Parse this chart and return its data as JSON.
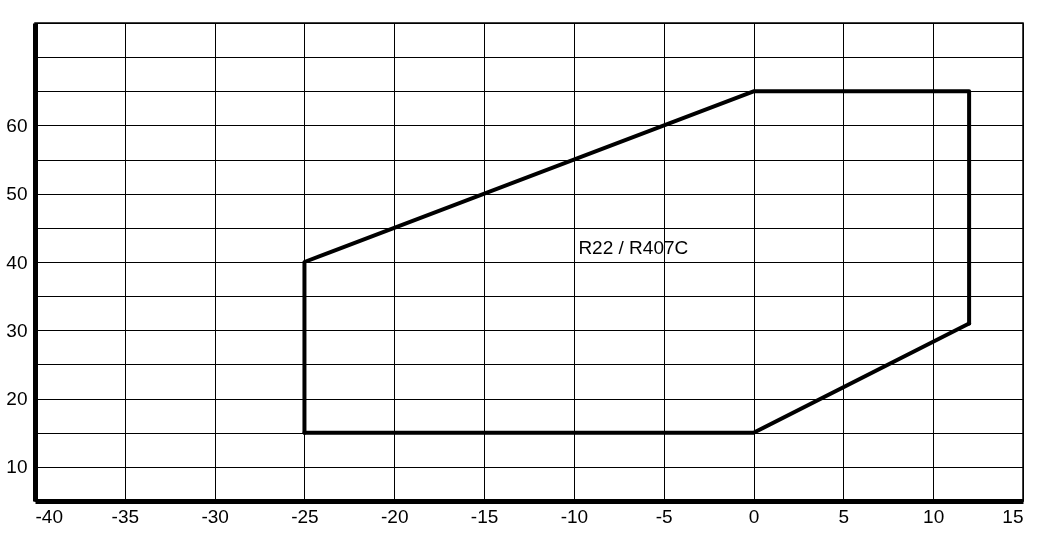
{
  "chart_data": {
    "type": "line",
    "series": [
      {
        "color": "#000000",
        "x": [
          -25,
          -25,
          0,
          12,
          12
        ],
        "values": [
          15,
          40,
          65,
          65,
          31
        ]
      },
      {
        "color": "#000000",
        "x": [
          -25,
          0,
          12
        ],
        "values": [
          15,
          15,
          31
        ]
      }
    ],
    "xlim": [
      -40,
      15
    ],
    "xticks": [
      -40,
      -35,
      -30,
      -25,
      -20,
      -15,
      -10,
      -5,
      0,
      5,
      10,
      15
    ],
    "ylim": [
      5,
      75
    ],
    "yticks": [
      10,
      {
        "value": 15,
        "label": null
      },
      20,
      {
        "value": 25,
        "label": null
      },
      30,
      {
        "value": 35,
        "label": null
      },
      40,
      {
        "value": 45,
        "label": null
      },
      50,
      {
        "value": 55,
        "label": null
      },
      60,
      {
        "value": 65,
        "label": null
      },
      {
        "value": 70,
        "label": null
      },
      {
        "value": 75,
        "label": null
      }
    ],
    "grid": true,
    "marker": "none",
    "line_style": "solid",
    "annotations": [
      "R22 / R407C"
    ]
  }
}
